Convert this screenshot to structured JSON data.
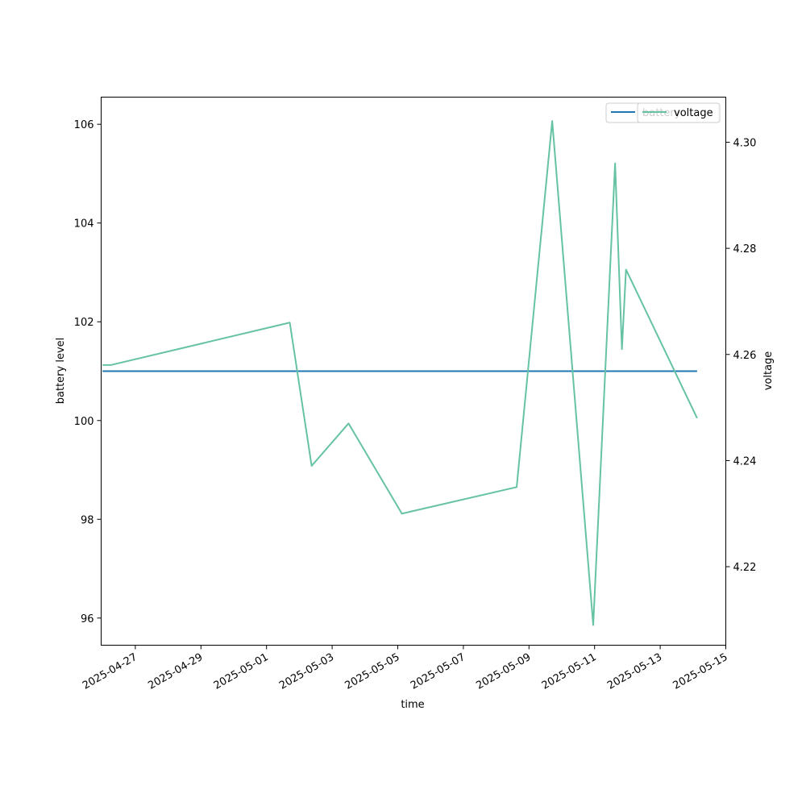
{
  "chart_data": {
    "type": "line",
    "xlabel": "time",
    "ylabel": "battery level",
    "ylabel_right": "voltage",
    "xlim": [
      "2025-04-25T23:00",
      "2025-05-15T00:00"
    ],
    "ylim": [
      95.45,
      106.55
    ],
    "ylim_right": [
      4.2052,
      4.3085
    ],
    "x_ticks": [
      "2025-04-27",
      "2025-04-29",
      "2025-05-01",
      "2025-05-03",
      "2025-05-05",
      "2025-05-07",
      "2025-05-09",
      "2025-05-11",
      "2025-05-13",
      "2025-05-15"
    ],
    "y_ticks": [
      96,
      98,
      100,
      102,
      104,
      106
    ],
    "y_ticks_right": [
      4.22,
      4.24,
      4.26,
      4.28,
      4.3
    ],
    "y_ticks_right_labels": [
      "4.22",
      "4.24",
      "4.26",
      "4.28",
      "4.30"
    ],
    "grid": false,
    "legends": [
      {
        "position": "top-right",
        "entries": [
          {
            "label": "battery",
            "color": "#1f77b4"
          }
        ]
      },
      {
        "position": "top-right",
        "entries": [
          {
            "label": "voltage",
            "color": "#66c2a5"
          }
        ]
      }
    ],
    "series": [
      {
        "name": "battery",
        "axis": "left",
        "color": "#1f77b4",
        "points": [
          {
            "x": "2025-04-26T00:00",
            "y": 101
          },
          {
            "x": "2025-05-14T03:00",
            "y": 101
          }
        ]
      },
      {
        "name": "voltage",
        "axis": "right",
        "color": "#66c2a5",
        "points": [
          {
            "x": "2025-04-26T00:00",
            "y": 4.258
          },
          {
            "x": "2025-04-26T06:00",
            "y": 4.258
          },
          {
            "x": "2025-05-01T17:00",
            "y": 4.266
          },
          {
            "x": "2025-05-02T09:00",
            "y": 4.239
          },
          {
            "x": "2025-05-03T12:00",
            "y": 4.247
          },
          {
            "x": "2025-05-05T03:00",
            "y": 4.23
          },
          {
            "x": "2025-05-08T15:00",
            "y": 4.235
          },
          {
            "x": "2025-05-09T17:00",
            "y": 4.304
          },
          {
            "x": "2025-05-10T23:00",
            "y": 4.209
          },
          {
            "x": "2025-05-11T15:00",
            "y": 4.296
          },
          {
            "x": "2025-05-11T20:00",
            "y": 4.261
          },
          {
            "x": "2025-05-11T23:00",
            "y": 4.276
          },
          {
            "x": "2025-05-14T03:00",
            "y": 4.248
          }
        ]
      }
    ]
  }
}
